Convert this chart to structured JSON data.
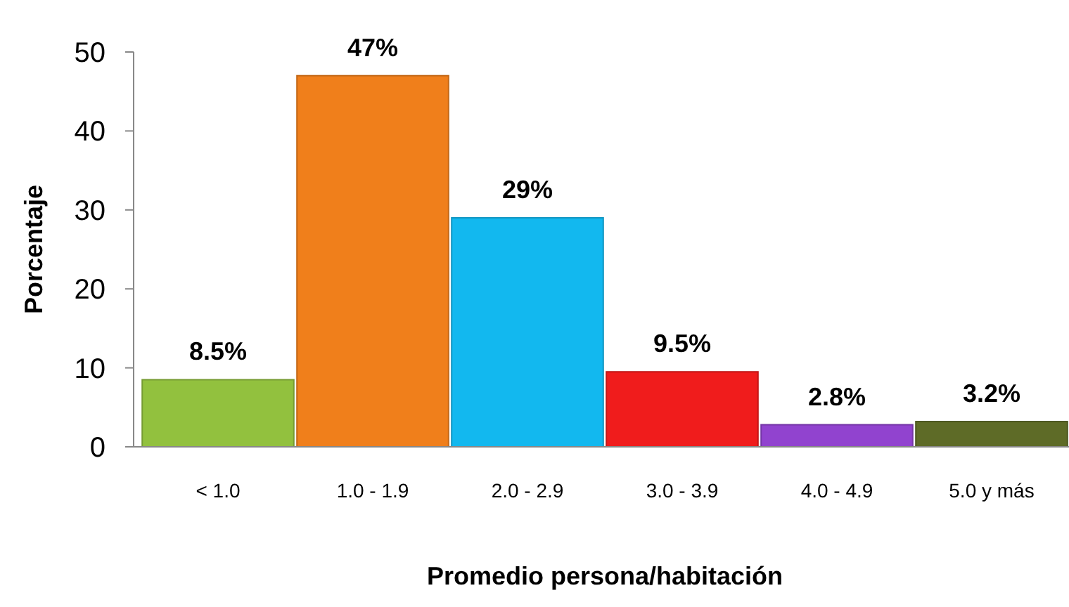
{
  "chart_data": {
    "type": "bar",
    "xlabel": "Promedio persona/habitación",
    "ylabel": "Porcentaje",
    "categories": [
      "< 1.0",
      "1.0 - 1.9",
      "2.0 - 2.9",
      "3.0 - 3.9",
      "4.0 - 4.9",
      "5.0 y más"
    ],
    "values": [
      8.5,
      47,
      29,
      9.5,
      2.8,
      3.2
    ],
    "colors": [
      "#92c13e",
      "#f07f1b",
      "#12b8ef",
      "#f01c1c",
      "#9143cf",
      "#5e6b27"
    ],
    "value_labels": [
      "8.5%",
      "47%",
      "29%",
      "9.5%",
      "2.8%",
      "3.2%"
    ],
    "ylim": [
      0,
      50
    ],
    "yticks": [
      0,
      10,
      20,
      30,
      40,
      50
    ],
    "grid": false
  }
}
